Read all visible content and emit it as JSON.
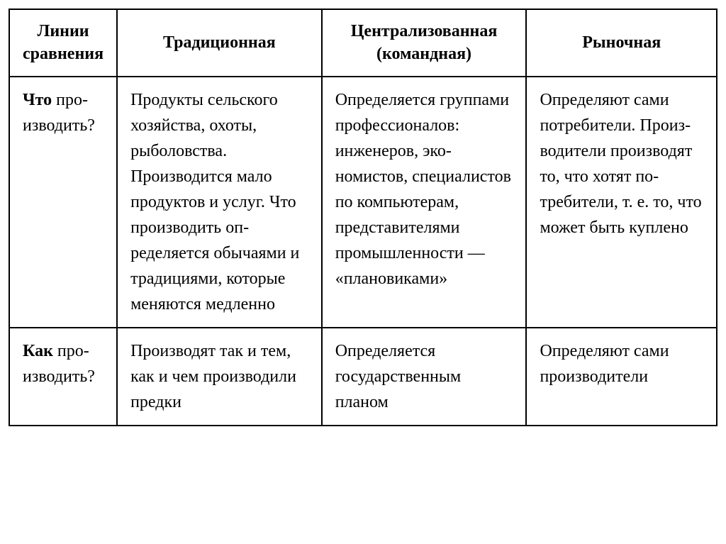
{
  "table": {
    "headers": {
      "col1": "Линии сравнения",
      "col2": "Традиционная",
      "col3": "Централизован­ная (командная)",
      "col4": "Рыночная"
    },
    "rows": [
      {
        "label_bold": "Что",
        "label_rest": " про­изводить?",
        "traditional": "Продукты сель­ского хозяйства, охоты, рыболов­ства. Производит­ся мало продук­тов и услуг. Что производить оп­ределяется обы­чаями и тради­циями, которые меняются мед­ленно",
        "centralized": "Определяется группами про­фессионалов: инженеров, эко­номистов, спе­циалистов по компьютерам, представителя­ми промышлен­ности — «плано­виками»",
        "market": "Определяют сами потреби­тели. Произ­водители про­изводят то, что хотят по­требители, т. е. то, что мо­жет быть куплено"
      },
      {
        "label_bold": "Как",
        "label_rest": " про­изводить?",
        "traditional": "Производят так и тем, как и чем производили предки",
        "centralized": "Определяется государствен­ным планом",
        "market": "Определяют сами произво­дители"
      }
    ]
  },
  "style": {
    "border_color": "#000000",
    "background_color": "#ffffff",
    "font_family": "Georgia, Times New Roman, serif",
    "header_fontsize": 24,
    "cell_fontsize": 24,
    "col_widths": [
      "15%",
      "29%",
      "29%",
      "27%"
    ]
  }
}
